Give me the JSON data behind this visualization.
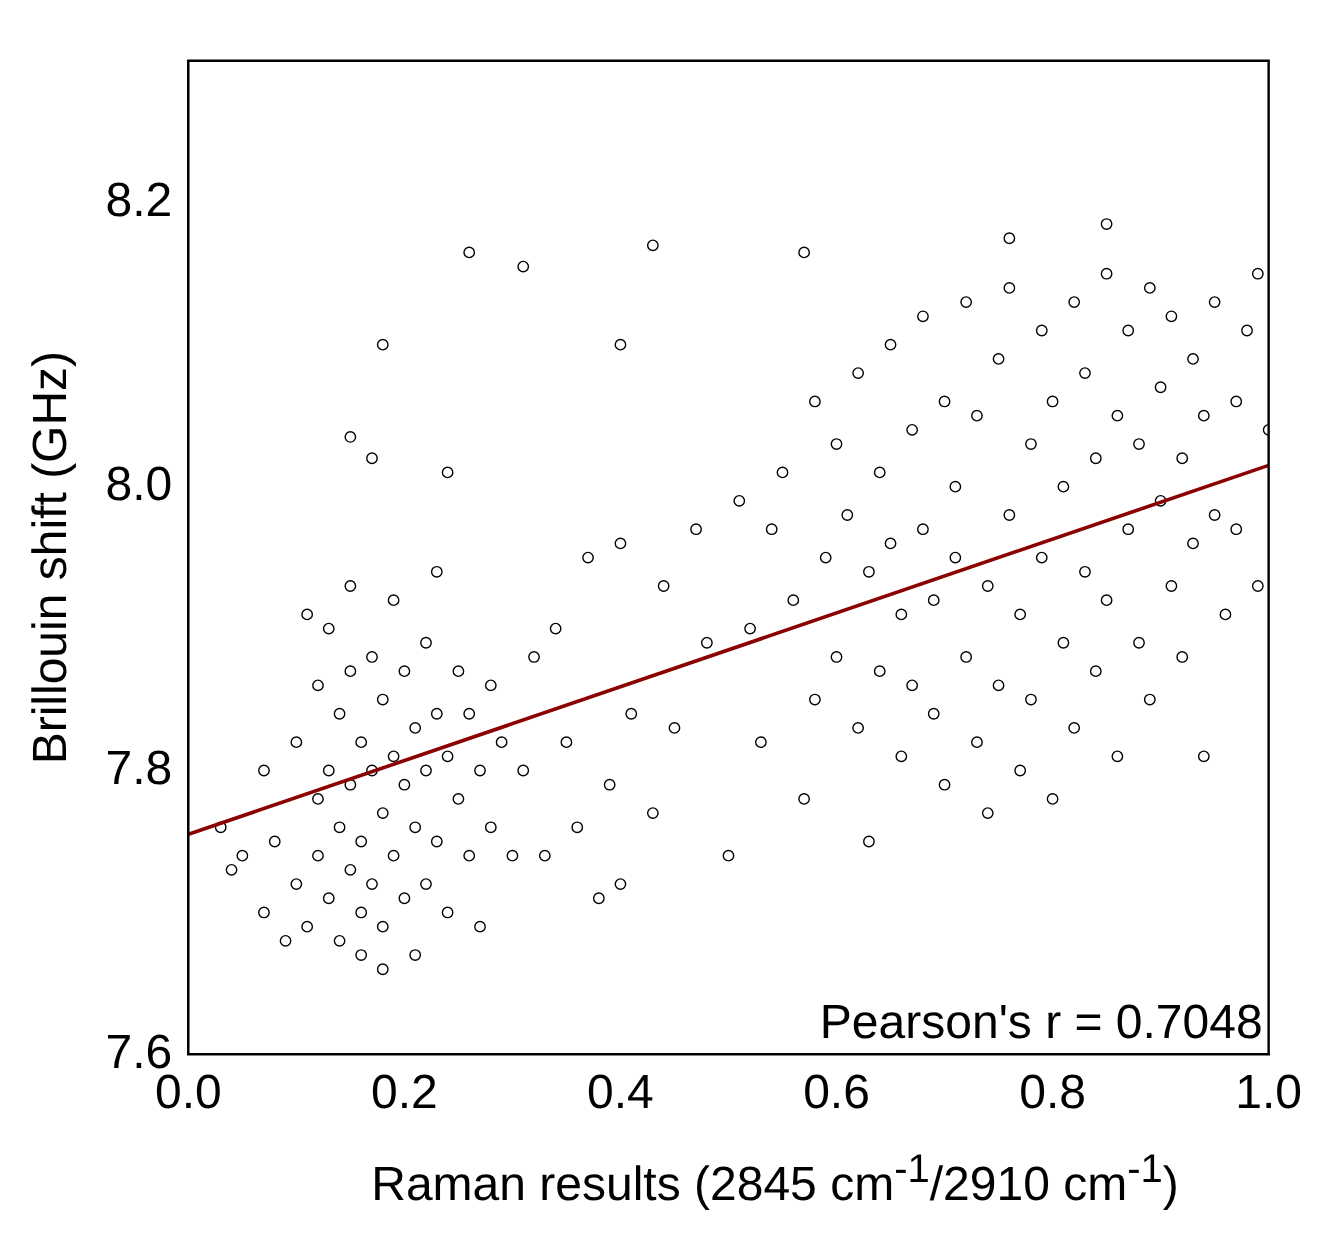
{
  "chart_data": {
    "type": "scatter",
    "xlabel": "Raman results (2845 cm$^{-1}$/2910 cm$^{-1}$)",
    "ylabel": "Brillouin shift (GHz)",
    "annotations": [
      "Pearson's r = 0.7048"
    ],
    "xlim": [
      0,
      1
    ],
    "xticks": [
      {
        "value": 0,
        "label": "0.0"
      },
      0.2,
      0.4,
      0.6,
      0.8,
      {
        "value": 1,
        "label": "1.0"
      }
    ],
    "ylim": [
      7.6,
      8.3
    ],
    "yticks": [
      7.6,
      7.8,
      {
        "value": 8,
        "label": "8.0"
      },
      8.2
    ],
    "grid": false,
    "legend": false,
    "marker": "circle",
    "series": [
      {
        "color": "#000000",
        "x": [
          0.03,
          0.04,
          0.05,
          0.07,
          0.07,
          0.08,
          0.09,
          0.1,
          0.1,
          0.11,
          0.11,
          0.12,
          0.12,
          0.12,
          0.13,
          0.13,
          0.13,
          0.14,
          0.14,
          0.14,
          0.15,
          0.15,
          0.15,
          0.15,
          0.16,
          0.16,
          0.16,
          0.16,
          0.17,
          0.17,
          0.17,
          0.18,
          0.18,
          0.18,
          0.18,
          0.19,
          0.19,
          0.19,
          0.2,
          0.2,
          0.2,
          0.21,
          0.21,
          0.21,
          0.22,
          0.22,
          0.22,
          0.23,
          0.23,
          0.23,
          0.24,
          0.24,
          0.25,
          0.25,
          0.26,
          0.26,
          0.27,
          0.27,
          0.28,
          0.28,
          0.29,
          0.3,
          0.31,
          0.32,
          0.33,
          0.34,
          0.35,
          0.36,
          0.37,
          0.38,
          0.39,
          0.4,
          0.41,
          0.43,
          0.44,
          0.45,
          0.47,
          0.48,
          0.5,
          0.51,
          0.52,
          0.53,
          0.54,
          0.55,
          0.56,
          0.57,
          0.58,
          0.58,
          0.59,
          0.6,
          0.6,
          0.61,
          0.62,
          0.62,
          0.63,
          0.63,
          0.64,
          0.64,
          0.65,
          0.65,
          0.66,
          0.66,
          0.67,
          0.67,
          0.68,
          0.68,
          0.69,
          0.69,
          0.7,
          0.7,
          0.71,
          0.71,
          0.72,
          0.72,
          0.73,
          0.73,
          0.74,
          0.74,
          0.75,
          0.75,
          0.76,
          0.76,
          0.77,
          0.77,
          0.78,
          0.78,
          0.79,
          0.79,
          0.8,
          0.8,
          0.81,
          0.81,
          0.82,
          0.82,
          0.83,
          0.83,
          0.84,
          0.84,
          0.85,
          0.85,
          0.86,
          0.86,
          0.87,
          0.87,
          0.88,
          0.88,
          0.89,
          0.89,
          0.9,
          0.9,
          0.91,
          0.91,
          0.92,
          0.92,
          0.93,
          0.93,
          0.94,
          0.94,
          0.95,
          0.95,
          0.96,
          0.97,
          0.97,
          0.98,
          0.99,
          0.99,
          1.0,
          0.26,
          0.31,
          0.43,
          0.57,
          0.18,
          0.4,
          0.85,
          0.76,
          0.17,
          0.15,
          0.24,
          0.4
        ],
        "values": [
          7.76,
          7.73,
          7.74,
          7.8,
          7.7,
          7.75,
          7.68,
          7.82,
          7.72,
          7.91,
          7.69,
          7.86,
          7.78,
          7.74,
          7.9,
          7.8,
          7.71,
          7.84,
          7.76,
          7.68,
          7.93,
          7.87,
          7.79,
          7.73,
          7.82,
          7.75,
          7.7,
          7.67,
          7.88,
          7.8,
          7.72,
          7.85,
          7.77,
          7.69,
          7.66,
          7.92,
          7.81,
          7.74,
          7.87,
          7.79,
          7.71,
          7.83,
          7.76,
          7.67,
          7.89,
          7.8,
          7.72,
          7.94,
          7.84,
          7.75,
          7.81,
          7.7,
          7.87,
          7.78,
          7.84,
          7.74,
          7.8,
          7.69,
          7.86,
          7.76,
          7.82,
          7.74,
          7.8,
          7.88,
          7.74,
          7.9,
          7.82,
          7.76,
          7.95,
          7.71,
          7.79,
          7.96,
          7.84,
          7.77,
          7.93,
          7.83,
          7.97,
          7.89,
          7.74,
          7.99,
          7.9,
          7.82,
          7.97,
          8.01,
          7.92,
          7.78,
          7.85,
          8.06,
          7.95,
          8.03,
          7.88,
          7.98,
          7.83,
          8.08,
          7.94,
          7.75,
          8.01,
          7.87,
          7.96,
          8.1,
          7.81,
          7.91,
          8.04,
          7.86,
          7.97,
          8.12,
          7.84,
          7.92,
          8.06,
          7.79,
          7.95,
          8.0,
          7.88,
          8.13,
          7.82,
          8.05,
          7.93,
          7.77,
          8.09,
          7.86,
          7.98,
          8.14,
          7.8,
          7.91,
          8.03,
          7.85,
          8.11,
          7.95,
          7.78,
          8.06,
          7.89,
          8.0,
          8.13,
          7.83,
          7.94,
          8.08,
          7.87,
          8.02,
          8.15,
          7.92,
          7.81,
          8.05,
          7.97,
          8.11,
          7.89,
          8.03,
          8.14,
          7.85,
          7.99,
          8.07,
          7.93,
          8.12,
          7.88,
          8.02,
          7.96,
          8.09,
          7.81,
          8.05,
          7.98,
          8.13,
          7.91,
          8.06,
          7.97,
          8.11,
          7.93,
          8.15,
          8.04,
          8.165,
          8.155,
          8.17,
          8.165,
          8.1,
          8.1,
          8.185,
          8.175,
          8.02,
          8.035,
          8.01,
          7.72
        ]
      },
      {
        "type": "line",
        "color": "#8b0000",
        "x": [
          0,
          1
        ],
        "values": [
          7.755,
          8.015
        ],
        "marker": "none"
      }
    ]
  }
}
